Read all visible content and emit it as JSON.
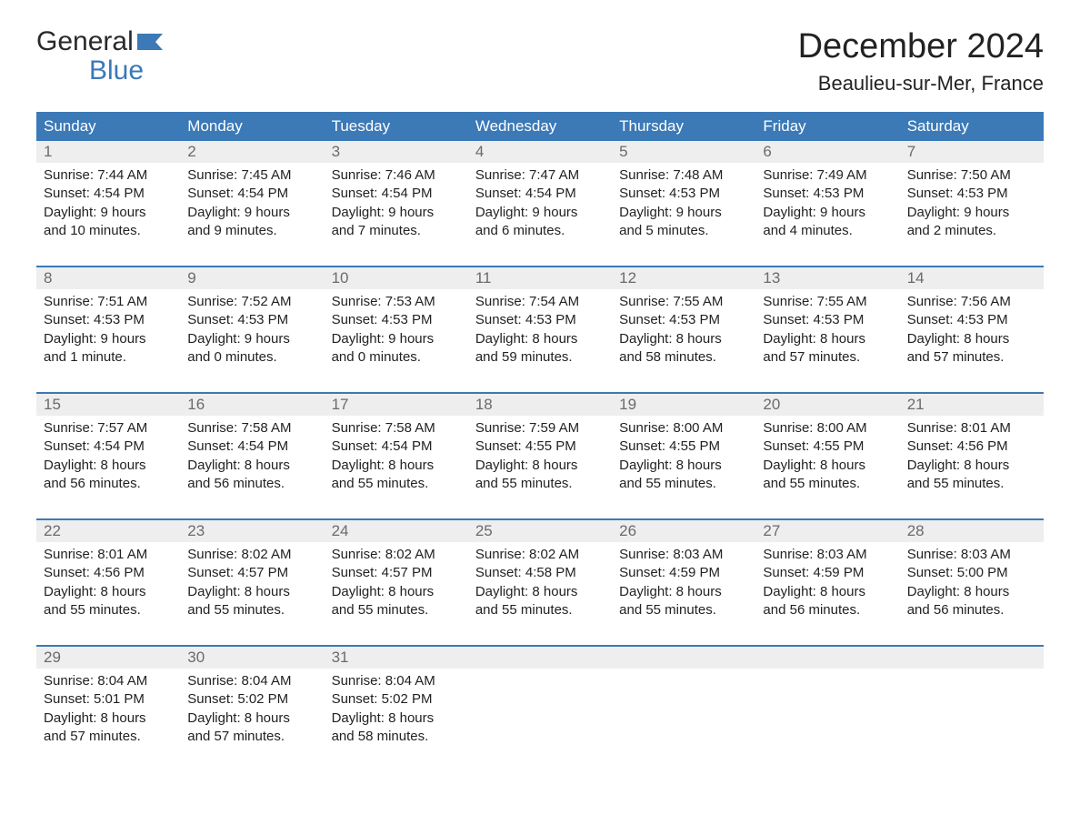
{
  "brand": {
    "word1": "General",
    "word2": "Blue"
  },
  "title": "December 2024",
  "location": "Beaulieu-sur-Mer, France",
  "colors": {
    "header_bg": "#3b79b7",
    "header_text": "#ffffff",
    "daynum_bg": "#eeeeee",
    "daynum_text": "#6b6b6b",
    "body_text": "#222222",
    "accent_rule": "#3b79b7",
    "page_bg": "#ffffff"
  },
  "layout": {
    "columns": 7,
    "weeks": 5,
    "font_family": "Arial",
    "title_fontsize_pt": 29,
    "location_fontsize_pt": 17,
    "header_fontsize_pt": 13,
    "daynum_fontsize_pt": 13,
    "cell_fontsize_pt": 11
  },
  "day_names": [
    "Sunday",
    "Monday",
    "Tuesday",
    "Wednesday",
    "Thursday",
    "Friday",
    "Saturday"
  ],
  "weeks": [
    [
      {
        "n": "1",
        "sunrise": "Sunrise: 7:44 AM",
        "sunset": "Sunset: 4:54 PM",
        "dl1": "Daylight: 9 hours",
        "dl2": "and 10 minutes."
      },
      {
        "n": "2",
        "sunrise": "Sunrise: 7:45 AM",
        "sunset": "Sunset: 4:54 PM",
        "dl1": "Daylight: 9 hours",
        "dl2": "and 9 minutes."
      },
      {
        "n": "3",
        "sunrise": "Sunrise: 7:46 AM",
        "sunset": "Sunset: 4:54 PM",
        "dl1": "Daylight: 9 hours",
        "dl2": "and 7 minutes."
      },
      {
        "n": "4",
        "sunrise": "Sunrise: 7:47 AM",
        "sunset": "Sunset: 4:54 PM",
        "dl1": "Daylight: 9 hours",
        "dl2": "and 6 minutes."
      },
      {
        "n": "5",
        "sunrise": "Sunrise: 7:48 AM",
        "sunset": "Sunset: 4:53 PM",
        "dl1": "Daylight: 9 hours",
        "dl2": "and 5 minutes."
      },
      {
        "n": "6",
        "sunrise": "Sunrise: 7:49 AM",
        "sunset": "Sunset: 4:53 PM",
        "dl1": "Daylight: 9 hours",
        "dl2": "and 4 minutes."
      },
      {
        "n": "7",
        "sunrise": "Sunrise: 7:50 AM",
        "sunset": "Sunset: 4:53 PM",
        "dl1": "Daylight: 9 hours",
        "dl2": "and 2 minutes."
      }
    ],
    [
      {
        "n": "8",
        "sunrise": "Sunrise: 7:51 AM",
        "sunset": "Sunset: 4:53 PM",
        "dl1": "Daylight: 9 hours",
        "dl2": "and 1 minute."
      },
      {
        "n": "9",
        "sunrise": "Sunrise: 7:52 AM",
        "sunset": "Sunset: 4:53 PM",
        "dl1": "Daylight: 9 hours",
        "dl2": "and 0 minutes."
      },
      {
        "n": "10",
        "sunrise": "Sunrise: 7:53 AM",
        "sunset": "Sunset: 4:53 PM",
        "dl1": "Daylight: 9 hours",
        "dl2": "and 0 minutes."
      },
      {
        "n": "11",
        "sunrise": "Sunrise: 7:54 AM",
        "sunset": "Sunset: 4:53 PM",
        "dl1": "Daylight: 8 hours",
        "dl2": "and 59 minutes."
      },
      {
        "n": "12",
        "sunrise": "Sunrise: 7:55 AM",
        "sunset": "Sunset: 4:53 PM",
        "dl1": "Daylight: 8 hours",
        "dl2": "and 58 minutes."
      },
      {
        "n": "13",
        "sunrise": "Sunrise: 7:55 AM",
        "sunset": "Sunset: 4:53 PM",
        "dl1": "Daylight: 8 hours",
        "dl2": "and 57 minutes."
      },
      {
        "n": "14",
        "sunrise": "Sunrise: 7:56 AM",
        "sunset": "Sunset: 4:53 PM",
        "dl1": "Daylight: 8 hours",
        "dl2": "and 57 minutes."
      }
    ],
    [
      {
        "n": "15",
        "sunrise": "Sunrise: 7:57 AM",
        "sunset": "Sunset: 4:54 PM",
        "dl1": "Daylight: 8 hours",
        "dl2": "and 56 minutes."
      },
      {
        "n": "16",
        "sunrise": "Sunrise: 7:58 AM",
        "sunset": "Sunset: 4:54 PM",
        "dl1": "Daylight: 8 hours",
        "dl2": "and 56 minutes."
      },
      {
        "n": "17",
        "sunrise": "Sunrise: 7:58 AM",
        "sunset": "Sunset: 4:54 PM",
        "dl1": "Daylight: 8 hours",
        "dl2": "and 55 minutes."
      },
      {
        "n": "18",
        "sunrise": "Sunrise: 7:59 AM",
        "sunset": "Sunset: 4:55 PM",
        "dl1": "Daylight: 8 hours",
        "dl2": "and 55 minutes."
      },
      {
        "n": "19",
        "sunrise": "Sunrise: 8:00 AM",
        "sunset": "Sunset: 4:55 PM",
        "dl1": "Daylight: 8 hours",
        "dl2": "and 55 minutes."
      },
      {
        "n": "20",
        "sunrise": "Sunrise: 8:00 AM",
        "sunset": "Sunset: 4:55 PM",
        "dl1": "Daylight: 8 hours",
        "dl2": "and 55 minutes."
      },
      {
        "n": "21",
        "sunrise": "Sunrise: 8:01 AM",
        "sunset": "Sunset: 4:56 PM",
        "dl1": "Daylight: 8 hours",
        "dl2": "and 55 minutes."
      }
    ],
    [
      {
        "n": "22",
        "sunrise": "Sunrise: 8:01 AM",
        "sunset": "Sunset: 4:56 PM",
        "dl1": "Daylight: 8 hours",
        "dl2": "and 55 minutes."
      },
      {
        "n": "23",
        "sunrise": "Sunrise: 8:02 AM",
        "sunset": "Sunset: 4:57 PM",
        "dl1": "Daylight: 8 hours",
        "dl2": "and 55 minutes."
      },
      {
        "n": "24",
        "sunrise": "Sunrise: 8:02 AM",
        "sunset": "Sunset: 4:57 PM",
        "dl1": "Daylight: 8 hours",
        "dl2": "and 55 minutes."
      },
      {
        "n": "25",
        "sunrise": "Sunrise: 8:02 AM",
        "sunset": "Sunset: 4:58 PM",
        "dl1": "Daylight: 8 hours",
        "dl2": "and 55 minutes."
      },
      {
        "n": "26",
        "sunrise": "Sunrise: 8:03 AM",
        "sunset": "Sunset: 4:59 PM",
        "dl1": "Daylight: 8 hours",
        "dl2": "and 55 minutes."
      },
      {
        "n": "27",
        "sunrise": "Sunrise: 8:03 AM",
        "sunset": "Sunset: 4:59 PM",
        "dl1": "Daylight: 8 hours",
        "dl2": "and 56 minutes."
      },
      {
        "n": "28",
        "sunrise": "Sunrise: 8:03 AM",
        "sunset": "Sunset: 5:00 PM",
        "dl1": "Daylight: 8 hours",
        "dl2": "and 56 minutes."
      }
    ],
    [
      {
        "n": "29",
        "sunrise": "Sunrise: 8:04 AM",
        "sunset": "Sunset: 5:01 PM",
        "dl1": "Daylight: 8 hours",
        "dl2": "and 57 minutes."
      },
      {
        "n": "30",
        "sunrise": "Sunrise: 8:04 AM",
        "sunset": "Sunset: 5:02 PM",
        "dl1": "Daylight: 8 hours",
        "dl2": "and 57 minutes."
      },
      {
        "n": "31",
        "sunrise": "Sunrise: 8:04 AM",
        "sunset": "Sunset: 5:02 PM",
        "dl1": "Daylight: 8 hours",
        "dl2": "and 58 minutes."
      },
      null,
      null,
      null,
      null
    ]
  ]
}
